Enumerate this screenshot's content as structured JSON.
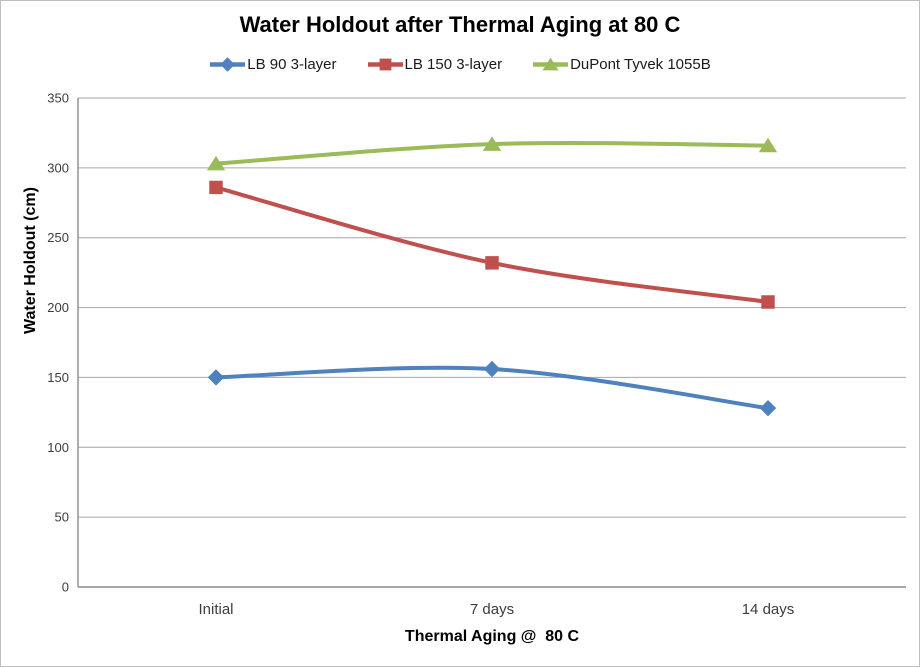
{
  "chart_data": {
    "type": "line",
    "title": "Water Holdout after Thermal Aging at 80 C",
    "xlabel": "Thermal Aging @  80 C",
    "ylabel": "Water Holdout (cm)",
    "categories": [
      "Initial",
      "7 days",
      "14 days"
    ],
    "series": [
      {
        "name": "LB 90 3-layer",
        "values": [
          150,
          156,
          128
        ],
        "color": "#4F81BD",
        "marker": "diamond"
      },
      {
        "name": "LB 150 3-layer",
        "values": [
          286,
          232,
          204
        ],
        "color": "#C0504D",
        "marker": "square"
      },
      {
        "name": "DuPont Tyvek 1055B",
        "values": [
          303,
          317,
          316
        ],
        "color": "#9BBB59",
        "marker": "triangle"
      }
    ],
    "ylim": [
      0,
      350
    ],
    "yticks": [
      0,
      50,
      100,
      150,
      200,
      250,
      300,
      350
    ],
    "grid": "horizontal",
    "legend_position": "top",
    "line_style": "smooth"
  },
  "colors": {
    "gridline": "#A6A6A6",
    "axis": "#8C8C8C",
    "tick_text": "#3d3d3d",
    "background": "#FFFFFF",
    "border": "#BFBFBF"
  }
}
